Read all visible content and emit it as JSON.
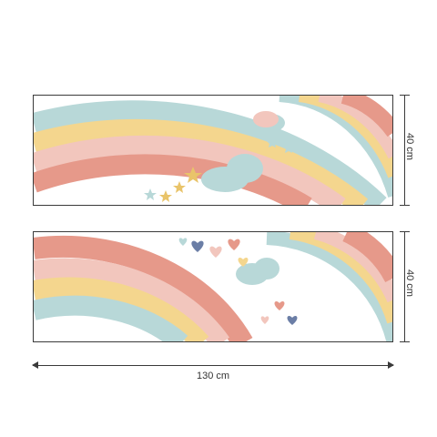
{
  "dimensions": {
    "panel_top_height": "40 cm",
    "panel_bottom_height": "40 cm",
    "total_width": "130 cm"
  },
  "colors": {
    "terracotta": "#e6998a",
    "pink": "#f2c6bd",
    "yellow": "#f4d68e",
    "blue": "#b8d8d8",
    "navy": "#6b7ea6",
    "star": "#e9c46a"
  }
}
